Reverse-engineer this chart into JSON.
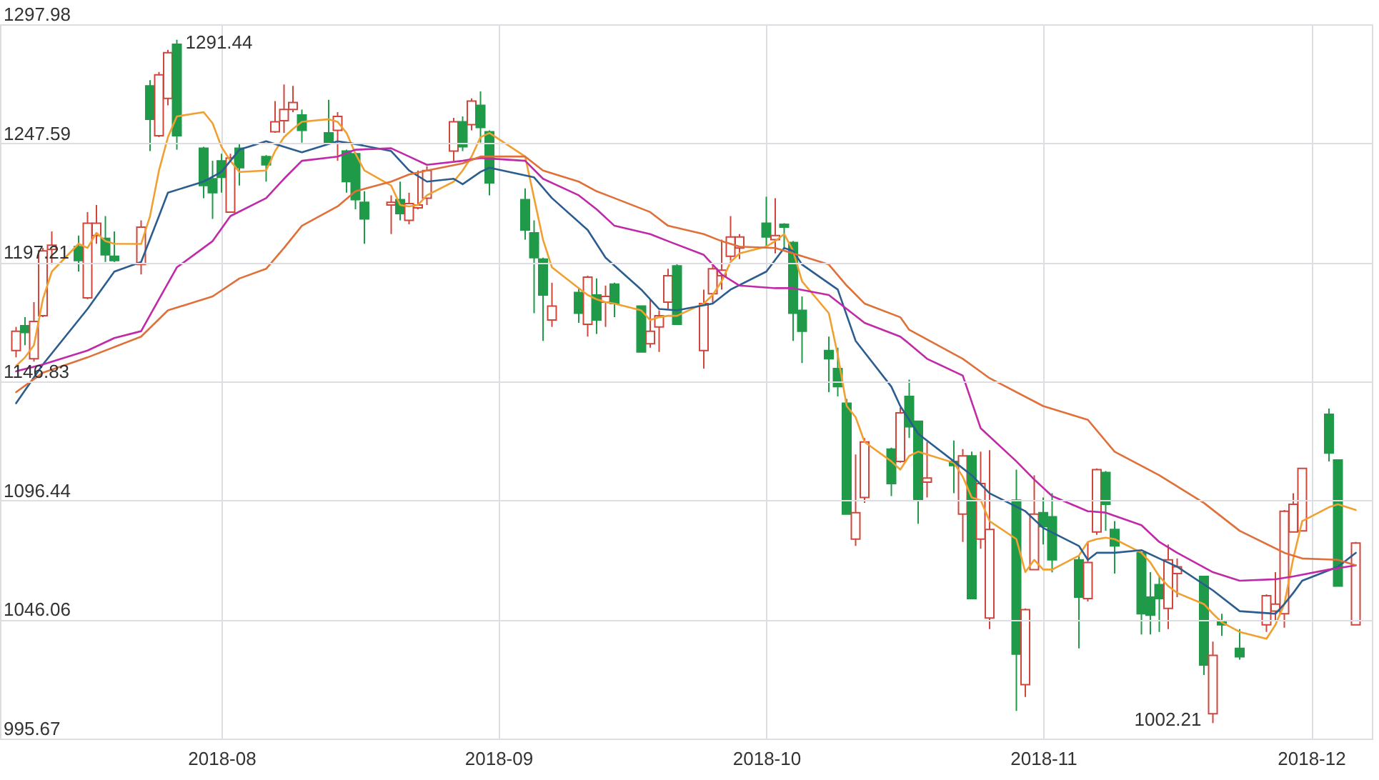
{
  "chart_data": {
    "type": "candlestick",
    "x": [
      "2018-07-09",
      "2018-07-10",
      "2018-07-11",
      "2018-07-12",
      "2018-07-13",
      "2018-07-16",
      "2018-07-17",
      "2018-07-18",
      "2018-07-19",
      "2018-07-20",
      "2018-07-23",
      "2018-07-24",
      "2018-07-25",
      "2018-07-26",
      "2018-07-27",
      "2018-07-30",
      "2018-07-31",
      "2018-08-01",
      "2018-08-02",
      "2018-08-03",
      "2018-08-06",
      "2018-08-07",
      "2018-08-08",
      "2018-08-09",
      "2018-08-10",
      "2018-08-13",
      "2018-08-14",
      "2018-08-15",
      "2018-08-16",
      "2018-08-17",
      "2018-08-20",
      "2018-08-21",
      "2018-08-22",
      "2018-08-23",
      "2018-08-24",
      "2018-08-27",
      "2018-08-28",
      "2018-08-29",
      "2018-08-30",
      "2018-08-31",
      "2018-09-04",
      "2018-09-05",
      "2018-09-06",
      "2018-09-07",
      "2018-09-10",
      "2018-09-11",
      "2018-09-12",
      "2018-09-13",
      "2018-09-14",
      "2018-09-17",
      "2018-09-18",
      "2018-09-19",
      "2018-09-20",
      "2018-09-21",
      "2018-09-24",
      "2018-09-25",
      "2018-09-26",
      "2018-09-27",
      "2018-09-28",
      "2018-10-01",
      "2018-10-02",
      "2018-10-03",
      "2018-10-04",
      "2018-10-05",
      "2018-10-08",
      "2018-10-09",
      "2018-10-10",
      "2018-10-11",
      "2018-10-12",
      "2018-10-15",
      "2018-10-16",
      "2018-10-17",
      "2018-10-18",
      "2018-10-19",
      "2018-10-22",
      "2018-10-23",
      "2018-10-24",
      "2018-10-25",
      "2018-10-26",
      "2018-10-29",
      "2018-10-30",
      "2018-10-31",
      "2018-11-01",
      "2018-11-02",
      "2018-11-05",
      "2018-11-06",
      "2018-11-07",
      "2018-11-08",
      "2018-11-09",
      "2018-11-12",
      "2018-11-13",
      "2018-11-14",
      "2018-11-15",
      "2018-11-16",
      "2018-11-19",
      "2018-11-20",
      "2018-11-21",
      "2018-11-23",
      "2018-11-26",
      "2018-11-27",
      "2018-11-28",
      "2018-11-29",
      "2018-11-30",
      "2018-12-03",
      "2018-12-04",
      "2018-12-06"
    ],
    "ohlc": [
      [
        1159.9,
        1169.9,
        1157.0,
        1168.1
      ],
      [
        1170.4,
        1174.0,
        1162.2,
        1167.5
      ],
      [
        1156.4,
        1180.4,
        1155.2,
        1172.2
      ],
      [
        1174.6,
        1203.3,
        1174.0,
        1202.1
      ],
      [
        1202.7,
        1210.3,
        1196.3,
        1204.5
      ],
      [
        1203.9,
        1208.6,
        1193.3,
        1198.0
      ],
      [
        1182.2,
        1218.5,
        1181.6,
        1213.8
      ],
      [
        1208.6,
        1221.5,
        1205.1,
        1213.8
      ],
      [
        1207.4,
        1216.8,
        1197.4,
        1200.4
      ],
      [
        1199.8,
        1210.3,
        1197.4,
        1198.0
      ],
      [
        1196.3,
        1215.0,
        1192.1,
        1212.1
      ],
      [
        1271.9,
        1274.3,
        1244.3,
        1257.8
      ],
      [
        1250.8,
        1277.8,
        1250.2,
        1276.6
      ],
      [
        1266.6,
        1287.2,
        1263.7,
        1286.0
      ],
      [
        1289.5,
        1291.44,
        1244.9,
        1250.8
      ],
      [
        1245.5,
        1246.1,
        1224.4,
        1229.7
      ],
      [
        1232.6,
        1240.2,
        1215.6,
        1226.7
      ],
      [
        1240.2,
        1243.2,
        1226.7,
        1233.2
      ],
      [
        1218.5,
        1243.2,
        1218.5,
        1241.4
      ],
      [
        1245.5,
        1247.3,
        1229.7,
        1237.3
      ],
      [
        1242.0,
        1242.6,
        1231.4,
        1238.5
      ],
      [
        1252.5,
        1265.5,
        1252.0,
        1256.7
      ],
      [
        1257.2,
        1272.5,
        1252.0,
        1261.9
      ],
      [
        1261.9,
        1271.9,
        1260.8,
        1264.9
      ],
      [
        1259.6,
        1261.9,
        1247.9,
        1253.1
      ],
      [
        1252.0,
        1266.0,
        1247.9,
        1247.9
      ],
      [
        1253.1,
        1260.8,
        1240.2,
        1259.0
      ],
      [
        1244.3,
        1244.9,
        1226.7,
        1231.4
      ],
      [
        1243.2,
        1243.8,
        1219.7,
        1223.8
      ],
      [
        1222.6,
        1227.3,
        1205.1,
        1215.6
      ],
      [
        1221.5,
        1225.6,
        1209.2,
        1222.6
      ],
      [
        1223.8,
        1231.4,
        1215.0,
        1217.9
      ],
      [
        1215.0,
        1226.7,
        1213.3,
        1222.1
      ],
      [
        1220.3,
        1236.1,
        1219.7,
        1221.5
      ],
      [
        1224.4,
        1237.9,
        1221.5,
        1236.1
      ],
      [
        1244.3,
        1258.4,
        1240.2,
        1256.7
      ],
      [
        1256.7,
        1259.0,
        1244.3,
        1246.1
      ],
      [
        1255.5,
        1266.6,
        1253.1,
        1265.5
      ],
      [
        1263.7,
        1269.6,
        1247.9,
        1254.3
      ],
      [
        1252.5,
        1253.1,
        1225.6,
        1230.9
      ],
      [
        1223.8,
        1228.5,
        1206.8,
        1210.9
      ],
      [
        1209.7,
        1215.0,
        1175.7,
        1199.2
      ],
      [
        1198.6,
        1199.2,
        1164.0,
        1183.4
      ],
      [
        1172.8,
        1188.6,
        1169.9,
        1178.7
      ],
      [
        1184.5,
        1186.3,
        1171.6,
        1175.7
      ],
      [
        1171.0,
        1191.6,
        1165.8,
        1191.0
      ],
      [
        1183.4,
        1190.4,
        1166.9,
        1172.8
      ],
      [
        1180.4,
        1187.4,
        1169.9,
        1182.8
      ],
      [
        1188.0,
        1188.6,
        1174.0,
        1179.8
      ],
      [
        1178.7,
        1178.7,
        1159.3,
        1159.3
      ],
      [
        1162.8,
        1181.6,
        1161.1,
        1168.1
      ],
      [
        1169.9,
        1176.9,
        1159.3,
        1174.6
      ],
      [
        1180.4,
        1194.5,
        1177.5,
        1191.6
      ],
      [
        1195.7,
        1196.8,
        1171.0,
        1171.0
      ],
      [
        1159.9,
        1185.7,
        1152.3,
        1179.8
      ],
      [
        1183.9,
        1196.3,
        1179.8,
        1194.5
      ],
      [
        1191.6,
        1206.8,
        1185.7,
        1193.9
      ],
      [
        1199.8,
        1216.8,
        1198.0,
        1208.0
      ],
      [
        1203.3,
        1209.2,
        1198.6,
        1208.0
      ],
      [
        1213.8,
        1225.0,
        1203.3,
        1208.0
      ],
      [
        1206.8,
        1224.4,
        1201.0,
        1208.6
      ],
      [
        1213.3,
        1213.8,
        1203.3,
        1212.1
      ],
      [
        1205.6,
        1206.2,
        1164.0,
        1175.7
      ],
      [
        1176.9,
        1182.8,
        1154.6,
        1168.1
      ],
      [
        1159.9,
        1165.8,
        1142.3,
        1156.4
      ],
      [
        1152.3,
        1161.1,
        1140.5,
        1144.6
      ],
      [
        1137.6,
        1139.4,
        1090.7,
        1090.7
      ],
      [
        1080.1,
        1115.9,
        1077.2,
        1091.3
      ],
      [
        1097.7,
        1122.9,
        1095.4,
        1121.2
      ],
      [
        1118.2,
        1118.8,
        1098.3,
        1103.6
      ],
      [
        1113.0,
        1135.8,
        1112.4,
        1133.5
      ],
      [
        1140.5,
        1147.6,
        1122.9,
        1127.6
      ],
      [
        1130.0,
        1130.0,
        1086.6,
        1096.6
      ],
      [
        1104.2,
        1121.2,
        1097.7,
        1105.9
      ],
      [
        1113.0,
        1121.8,
        1099.5,
        1111.2
      ],
      [
        1090.7,
        1118.2,
        1078.9,
        1115.3
      ],
      [
        1115.3,
        1117.1,
        1054.9,
        1054.9
      ],
      [
        1080.1,
        1117.1,
        1076.0,
        1103.6
      ],
      [
        1046.7,
        1117.7,
        1042.0,
        1084.2
      ],
      [
        1096.6,
        1109.5,
        1007.4,
        1031.4
      ],
      [
        1018.5,
        1050.8,
        1013.3,
        1050.2
      ],
      [
        1067.2,
        1107.1,
        1067.2,
        1090.7
      ],
      [
        1091.3,
        1097.7,
        1077.8,
        1085.4
      ],
      [
        1089.5,
        1099.5,
        1066.0,
        1071.3
      ],
      [
        1071.3,
        1073.1,
        1033.8,
        1055.5
      ],
      [
        1054.9,
        1078.9,
        1053.7,
        1070.2
      ],
      [
        1083.1,
        1110.0,
        1081.9,
        1109.5
      ],
      [
        1108.3,
        1108.9,
        1083.6,
        1094.8
      ],
      [
        1084.2,
        1087.7,
        1065.5,
        1077.2
      ],
      [
        1074.3,
        1074.3,
        1039.7,
        1048.5
      ],
      [
        1055.5,
        1066.1,
        1039.7,
        1047.9
      ],
      [
        1060.8,
        1064.3,
        1040.8,
        1054.9
      ],
      [
        1050.8,
        1077.8,
        1042.0,
        1071.3
      ],
      [
        1065.5,
        1071.9,
        1055.5,
        1068.4
      ],
      [
        1064.3,
        1064.3,
        1022.6,
        1026.8
      ],
      [
        1006.2,
        1036.7,
        1002.21,
        1030.9
      ],
      [
        1045.5,
        1048.5,
        1039.1,
        1043.8
      ],
      [
        1033.8,
        1042.0,
        1029.1,
        1030.3
      ],
      [
        1043.8,
        1056.7,
        1040.8,
        1056.1
      ],
      [
        1049.6,
        1066.1,
        1045.5,
        1052.6
      ],
      [
        1048.5,
        1092.4,
        1042.6,
        1091.9
      ],
      [
        1083.1,
        1099.5,
        1083.1,
        1094.8
      ],
      [
        1083.6,
        1110.0,
        1083.6,
        1110.0
      ],
      [
        1132.9,
        1135.3,
        1113.0,
        1116.5
      ],
      [
        1113.6,
        1113.6,
        1060.2,
        1060.2
      ],
      [
        1043.8,
        1078.9,
        1043.8,
        1078.4
      ]
    ],
    "colors": [
      "#d0463c",
      "#1f9a48",
      "#d0463c",
      "#d0463c",
      "#d0463c",
      "#1f9a48",
      "#d0463c",
      "#d0463c",
      "#1f9a48",
      "#1f9a48",
      "#d0463c",
      "#1f9a48",
      "#d0463c",
      "#d0463c",
      "#1f9a48",
      "#1f9a48",
      "#1f9a48",
      "#1f9a48",
      "#d0463c",
      "#1f9a48",
      "#1f9a48",
      "#d0463c",
      "#d0463c",
      "#d0463c",
      "#1f9a48",
      "#1f9a48",
      "#d0463c",
      "#1f9a48",
      "#1f9a48",
      "#1f9a48",
      "#d0463c",
      "#1f9a48",
      "#d0463c",
      "#d0463c",
      "#d0463c",
      "#d0463c",
      "#1f9a48",
      "#d0463c",
      "#1f9a48",
      "#1f9a48",
      "#1f9a48",
      "#1f9a48",
      "#1f9a48",
      "#d0463c",
      "#1f9a48",
      "#d0463c",
      "#1f9a48",
      "#d0463c",
      "#1f9a48",
      "#1f9a48",
      "#d0463c",
      "#d0463c",
      "#d0463c",
      "#1f9a48",
      "#d0463c",
      "#d0463c",
      "#d0463c",
      "#d0463c",
      "#d0463c",
      "#1f9a48",
      "#d0463c",
      "#1f9a48",
      "#1f9a48",
      "#1f9a48",
      "#1f9a48",
      "#1f9a48",
      "#1f9a48",
      "#d0463c",
      "#d0463c",
      "#1f9a48",
      "#d0463c",
      "#1f9a48",
      "#1f9a48",
      "#d0463c",
      "#1f9a48",
      "#d0463c",
      "#1f9a48",
      "#d0463c",
      "#d0463c",
      "#1f9a48",
      "#d0463c",
      "#d0463c",
      "#1f9a48",
      "#1f9a48",
      "#1f9a48",
      "#d0463c",
      "#d0463c",
      "#1f9a48",
      "#1f9a48",
      "#1f9a48",
      "#1f9a48",
      "#1f9a48",
      "#d0463c",
      "#d0463c",
      "#1f9a48",
      "#d0463c",
      "#1f9a48",
      "#1f9a48",
      "#d0463c",
      "#d0463c",
      "#d0463c",
      "#d0463c",
      "#d0463c",
      "#1f9a48",
      "#1f9a48",
      "#d0463c"
    ],
    "series": [
      {
        "type": "line",
        "color": "#f0a030",
        "values": [
          1153.4,
          1157.0,
          1162.2,
          1181.6,
          1193.3,
          1205.1,
          1203.3,
          1209.7,
          1206.2,
          1205.1,
          1205.0,
          1216.8,
          1236.1,
          1250.2,
          1259.0,
          1260.8,
          1256.1,
          1246.1,
          1240.2,
          1235.5,
          1236.1,
          1244.3,
          1250.2,
          1253.7,
          1256.7,
          1257.8,
          1256.7,
          1252.0,
          1243.2,
          1236.1,
          1229.7,
          1221.5,
          1220.9,
          1221.5,
          1225.6,
          1231.4,
          1236.1,
          1242.0,
          1250.2,
          1252.0,
          1242.0,
          1224.4,
          1206.8,
          1195.1,
          1186.3,
          1183.4,
          1181.6,
          1180.4,
          1179.8,
          1176.9,
          1172.8,
          1174.0,
          1174.6,
          1174.6,
          1179.8,
          1183.4,
          1189.2,
          1197.4,
          1201.0,
          1203.9,
          1206.2,
          1209.2,
          1202.1,
          1189.2,
          1175.7,
          1158.1,
          1136.4,
          1131.7,
          1121.2,
          1113.0,
          1109.5,
          1115.3,
          1117.1,
          1115.9,
          1112.4,
          1106.5,
          1097.7,
          1096.6,
          1087.7,
          1080.1,
          1066.1,
          1071.3,
          1067.2,
          1067.2,
          1073.1,
          1078.9,
          1080.1,
          1080.7,
          1080.1,
          1074.3,
          1070.2,
          1064.3,
          1060.2,
          1057.3,
          1052.6,
          1048.5,
          1044.9,
          1040.8,
          1037.9,
          1043.8,
          1052.6,
          1071.9,
          1087.7,
          1093.6,
          1094.8,
          1092.4
        ]
      },
      {
        "type": "line",
        "color": "#2b5d8f",
        "x": [
          "2018-07-09",
          "2018-07-12",
          "2018-07-17",
          "2018-07-20",
          "2018-07-23",
          "2018-07-25",
          "2018-07-26",
          "2018-07-30",
          "2018-08-01",
          "2018-08-03",
          "2018-08-06",
          "2018-08-08",
          "2018-08-10",
          "2018-08-14",
          "2018-08-16",
          "2018-08-20",
          "2018-08-22",
          "2018-08-24",
          "2018-08-27",
          "2018-08-28",
          "2018-08-30",
          "2018-08-31",
          "2018-09-05",
          "2018-09-07",
          "2018-09-11",
          "2018-09-13",
          "2018-09-17",
          "2018-09-19",
          "2018-09-21",
          "2018-09-25",
          "2018-09-27",
          "2018-10-01",
          "2018-10-03",
          "2018-10-04",
          "2018-10-05",
          "2018-10-09",
          "2018-10-11",
          "2018-10-15",
          "2018-10-16",
          "2018-10-17",
          "2018-10-18",
          "2018-10-22",
          "2018-10-24",
          "2018-10-26",
          "2018-10-30",
          "2018-11-01",
          "2018-11-05",
          "2018-11-06",
          "2018-11-07",
          "2018-11-09",
          "2018-11-12",
          "2018-11-14",
          "2018-11-16",
          "2018-11-20",
          "2018-11-23",
          "2018-11-27",
          "2018-11-28",
          "2018-11-29",
          "2018-11-30",
          "2018-12-04",
          "2018-12-06"
        ],
        "values": [
          1137.6,
          1154.0,
          1177.5,
          1193.3,
          1197.4,
          1216.8,
          1226.7,
          1231.4,
          1235.5,
          1244.9,
          1248.5,
          1246.1,
          1243.8,
          1248.5,
          1247.3,
          1244.3,
          1236.1,
          1231.4,
          1232.6,
          1230.3,
          1235.5,
          1237.3,
          1233.2,
          1224.4,
          1210.9,
          1199.2,
          1185.7,
          1177.5,
          1176.9,
          1179.8,
          1185.7,
          1193.3,
          1203.3,
          1202.1,
          1196.3,
          1185.7,
          1164.0,
          1144.6,
          1136.4,
          1130.6,
          1124.7,
          1113.0,
          1107.1,
          1099.5,
          1091.9,
          1084.8,
          1077.2,
          1071.3,
          1074.3,
          1074.3,
          1075.4,
          1071.9,
          1068.4,
          1058.4,
          1049.6,
          1048.5,
          1052.6,
          1057.3,
          1062.5,
          1068.4,
          1074.3
        ]
      },
      {
        "type": "line",
        "color": "#c02aa8",
        "x": [
          "2018-07-09",
          "2018-07-12",
          "2018-07-17",
          "2018-07-20",
          "2018-07-23",
          "2018-07-25",
          "2018-07-27",
          "2018-07-31",
          "2018-08-02",
          "2018-08-06",
          "2018-08-08",
          "2018-08-10",
          "2018-08-14",
          "2018-08-16",
          "2018-08-20",
          "2018-08-22",
          "2018-08-24",
          "2018-08-28",
          "2018-08-30",
          "2018-09-04",
          "2018-09-06",
          "2018-09-10",
          "2018-09-12",
          "2018-09-14",
          "2018-09-18",
          "2018-09-20",
          "2018-09-24",
          "2018-09-26",
          "2018-09-28",
          "2018-10-02",
          "2018-10-04",
          "2018-10-08",
          "2018-10-10",
          "2018-10-12",
          "2018-10-16",
          "2018-10-17",
          "2018-10-19",
          "2018-10-23",
          "2018-10-25",
          "2018-10-29",
          "2018-10-31",
          "2018-11-02",
          "2018-11-06",
          "2018-11-08",
          "2018-11-12",
          "2018-11-14",
          "2018-11-16",
          "2018-11-20",
          "2018-11-23",
          "2018-11-27",
          "2018-11-29",
          "2018-12-03",
          "2018-12-06"
        ],
        "values": [
          1151.1,
          1154.0,
          1159.9,
          1165.2,
          1168.1,
          1181.6,
          1195.1,
          1206.2,
          1216.8,
          1224.4,
          1232.6,
          1240.2,
          1242.0,
          1244.9,
          1245.5,
          1242.0,
          1238.5,
          1240.2,
          1241.4,
          1240.2,
          1232.6,
          1225.6,
          1219.7,
          1212.7,
          1209.2,
          1206.2,
          1200.4,
          1192.1,
          1187.4,
          1186.3,
          1186.3,
          1183.4,
          1177.5,
          1171.6,
          1165.8,
          1162.8,
          1156.4,
          1149.3,
          1127.0,
          1113.0,
          1105.3,
          1098.3,
          1091.9,
          1091.3,
          1086.0,
          1078.9,
          1074.3,
          1066.1,
          1062.5,
          1063.1,
          1064.3,
          1067.2,
          1069.0
        ]
      },
      {
        "type": "line",
        "color": "#e0703a",
        "x": [
          "2018-07-09",
          "2018-07-12",
          "2018-07-17",
          "2018-07-23",
          "2018-07-26",
          "2018-07-31",
          "2018-08-03",
          "2018-08-06",
          "2018-08-08",
          "2018-08-10",
          "2018-08-14",
          "2018-08-16",
          "2018-08-20",
          "2018-08-22",
          "2018-08-24",
          "2018-08-28",
          "2018-08-30",
          "2018-09-04",
          "2018-09-06",
          "2018-09-10",
          "2018-09-12",
          "2018-09-14",
          "2018-09-18",
          "2018-09-20",
          "2018-09-24",
          "2018-09-26",
          "2018-09-28",
          "2018-10-02",
          "2018-10-04",
          "2018-10-08",
          "2018-10-10",
          "2018-10-12",
          "2018-10-16",
          "2018-10-17",
          "2018-10-23",
          "2018-10-26",
          "2018-11-01",
          "2018-11-06",
          "2018-11-09",
          "2018-11-14",
          "2018-11-19",
          "2018-11-23",
          "2018-11-28",
          "2018-11-30",
          "2018-12-04",
          "2018-12-06"
        ],
        "values": [
          1142.3,
          1150.5,
          1157.0,
          1165.8,
          1176.9,
          1182.8,
          1190.4,
          1194.5,
          1203.3,
          1212.7,
          1220.9,
          1227.3,
          1231.4,
          1234.4,
          1236.1,
          1239.1,
          1242.0,
          1242.0,
          1236.1,
          1231.4,
          1227.3,
          1224.4,
          1218.5,
          1212.7,
          1209.2,
          1206.2,
          1203.9,
          1203.3,
          1201.0,
          1196.3,
          1187.4,
          1179.8,
          1174.0,
          1168.7,
          1156.4,
          1148.2,
          1136.4,
          1130.6,
          1117.1,
          1107.1,
          1095.4,
          1083.6,
          1074.3,
          1071.9,
          1071.3,
          1069.0
        ]
      }
    ],
    "annotations": [
      {
        "text": "1291.44",
        "x": "2018-07-27",
        "y": 1291.44
      },
      {
        "text": "1002.21",
        "x": "2018-11-20",
        "y": 1002.21
      }
    ],
    "xlim": [
      "2018-07-08",
      "2018-12-07"
    ],
    "xticks": [
      "2018-08",
      "2018-09",
      "2018-10",
      "2018-11",
      "2018-12"
    ],
    "ylim": [
      995.67,
      1297.98
    ],
    "yticks": [
      995.67,
      1046.06,
      1096.44,
      1146.83,
      1197.21,
      1247.59,
      1297.98
    ],
    "grid": true
  }
}
